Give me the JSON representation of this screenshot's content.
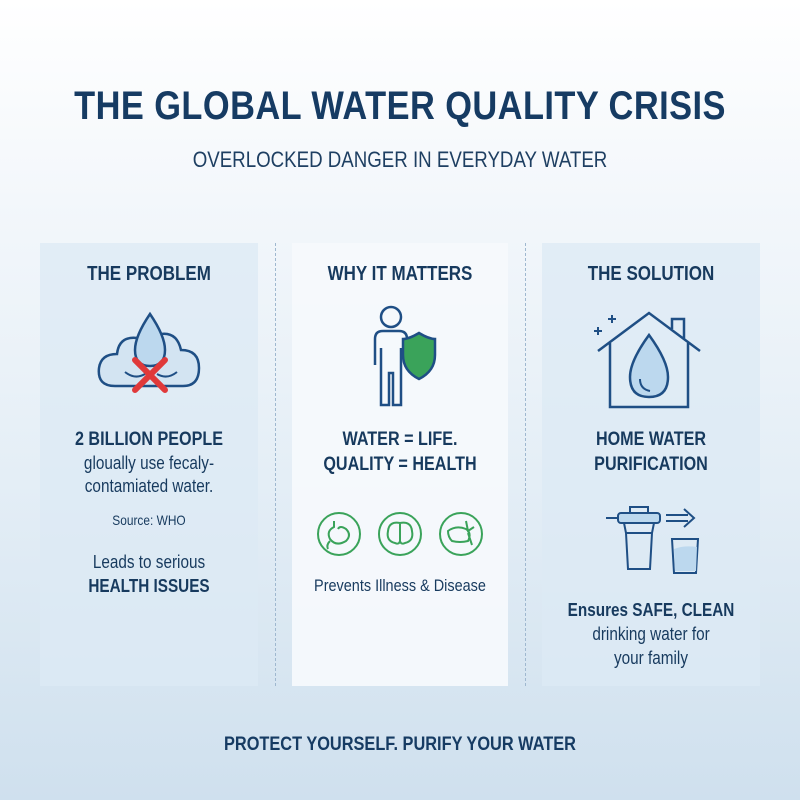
{
  "title": "THE GLOBAL WATER QUALITY CRISIS",
  "subtitle": "OVERLOCKED DANGER IN EVERYDAY WATER",
  "colors": {
    "navy": "#173a5e",
    "green": "#3aa35a",
    "red": "#e0393a",
    "water": "#bcd8ee"
  },
  "problem": {
    "heading": "THE PROBLEM",
    "icon": "contaminated-water-drop-icon",
    "stat": "2 BILLION PEOPLE",
    "line1": "gloually use fecaly-",
    "line2": "contamiated water.",
    "source": "Source: WHO",
    "lead1": "Leads to serious",
    "lead2": "HEALTH ISSUES"
  },
  "matters": {
    "heading": "WHY IT MATTERS",
    "icon": "person-shield-icon",
    "line1": "WATER = LIFE.",
    "line2": "QUALITY = HEALTH",
    "organs": [
      "stomach-icon",
      "brain-icon",
      "liver-icon"
    ],
    "caption": "Prevents Illness & Disease"
  },
  "solution": {
    "heading": "THE SOLUTION",
    "icon": "house-water-drop-icon",
    "line1": "HOME WATER",
    "line2": "PURIFICATION",
    "filter_icon": "water-filter-glass-icon",
    "desc1": "Ensures SAFE, CLEAN",
    "desc2": "drinking water for",
    "desc3": "your family"
  },
  "footer": "PROTECT YOURSELF. PURIFY YOUR WATER"
}
